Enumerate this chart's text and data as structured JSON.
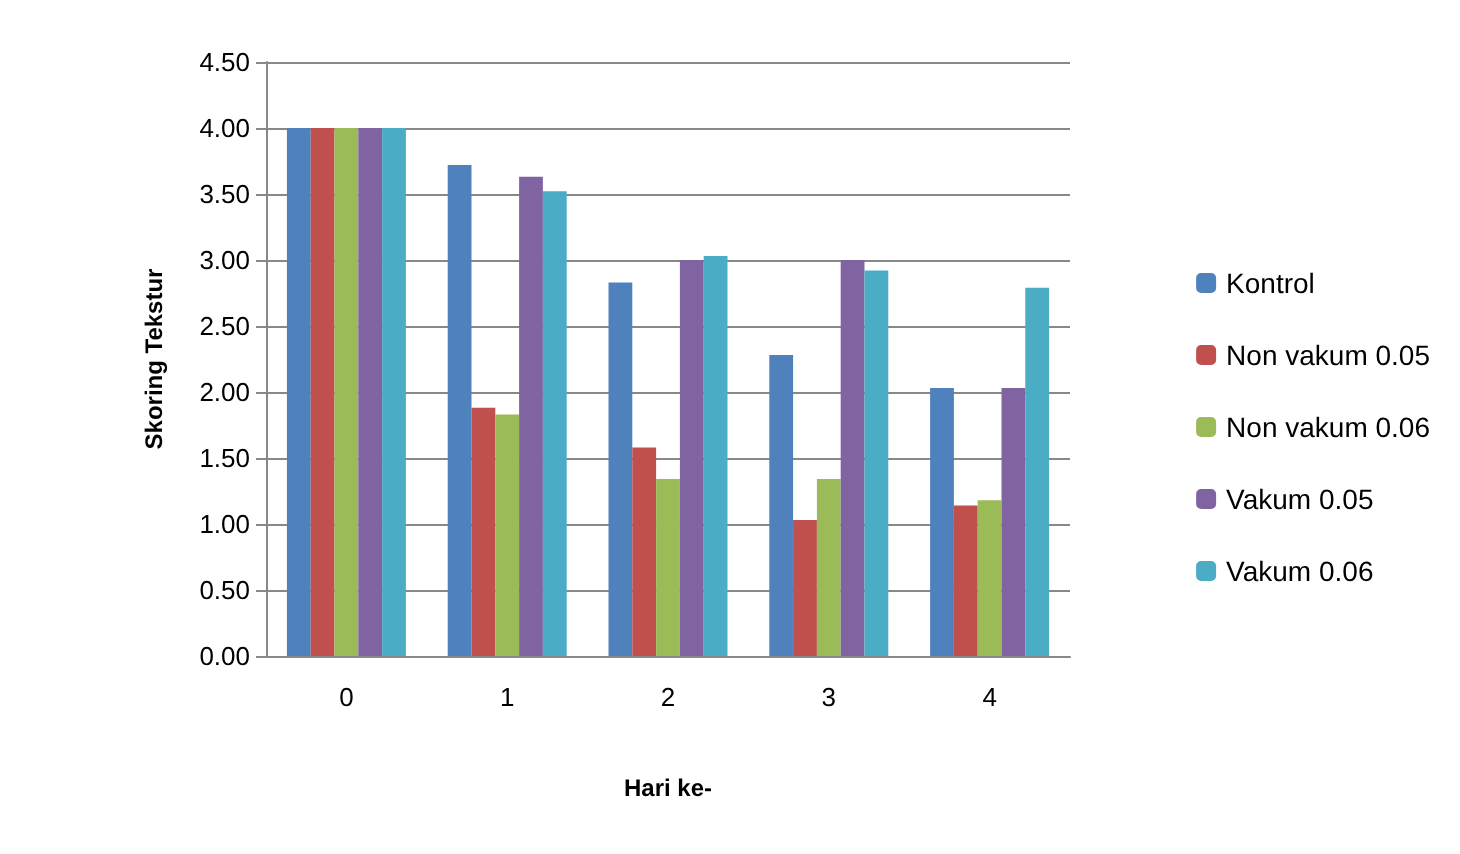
{
  "chart_data": {
    "type": "bar",
    "xlabel": "Hari ke-",
    "ylabel": "Skoring Tekstur",
    "categories": [
      "0",
      "1",
      "2",
      "3",
      "4"
    ],
    "series": [
      {
        "name": "Kontrol",
        "color": "#4f81bd",
        "values": [
          4.0,
          3.72,
          2.83,
          2.28,
          2.03
        ]
      },
      {
        "name": "Non vakum 0.05",
        "color": "#c0504d",
        "values": [
          4.0,
          1.88,
          1.58,
          1.03,
          1.14
        ]
      },
      {
        "name": "Non vakum 0.06",
        "color": "#9bbb59",
        "values": [
          4.0,
          1.83,
          1.34,
          1.34,
          1.18
        ]
      },
      {
        "name": "Vakum 0.05",
        "color": "#8064a2",
        "values": [
          4.0,
          3.63,
          3.0,
          3.0,
          2.03
        ]
      },
      {
        "name": "Vakum 0.06",
        "color": "#4bacc6",
        "values": [
          4.0,
          3.52,
          3.03,
          2.92,
          2.79
        ]
      }
    ],
    "ylim": [
      0,
      4.5
    ],
    "yticks": [
      {
        "value": 0,
        "label": "0.00"
      },
      {
        "value": 0.5,
        "label": "0.50"
      },
      {
        "value": 1,
        "label": "1.00"
      },
      {
        "value": 1.5,
        "label": "1.50"
      },
      {
        "value": 2,
        "label": "2.00"
      },
      {
        "value": 2.5,
        "label": "2.50"
      },
      {
        "value": 3,
        "label": "3.00"
      },
      {
        "value": 3.5,
        "label": "3.50"
      },
      {
        "value": 4,
        "label": "4.00"
      },
      {
        "value": 4.5,
        "label": "4.50"
      }
    ],
    "grid": "y",
    "legend": "right"
  }
}
